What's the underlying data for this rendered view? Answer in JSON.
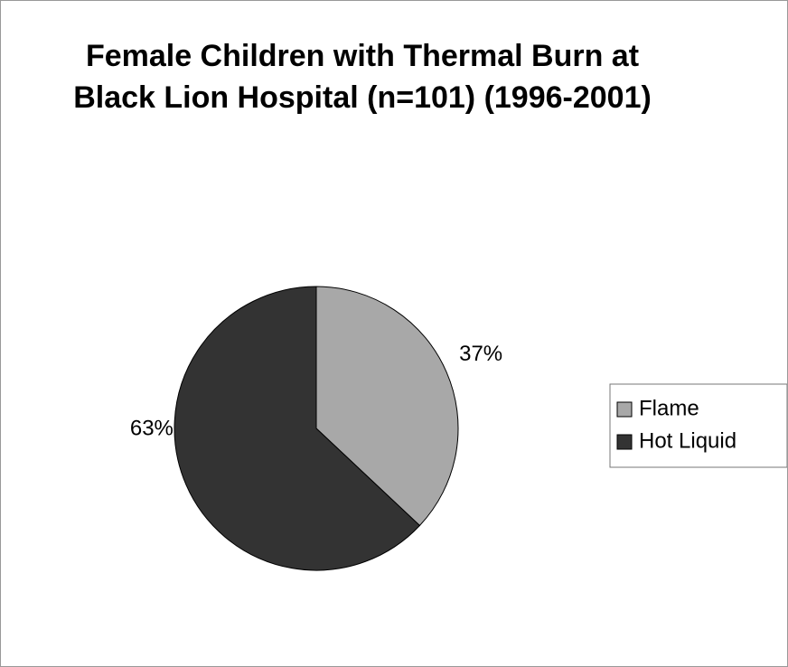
{
  "chart_data": {
    "type": "pie",
    "title": "Female Children with Thermal Burn at Black Lion Hospital (n=101) (1996-2001)",
    "categories": [
      "Flame",
      "Hot Liquid"
    ],
    "values": [
      37,
      63
    ],
    "value_labels": [
      "37%",
      "63%"
    ],
    "colors": [
      "#a8a8a8",
      "#333333"
    ],
    "legend": "right"
  }
}
